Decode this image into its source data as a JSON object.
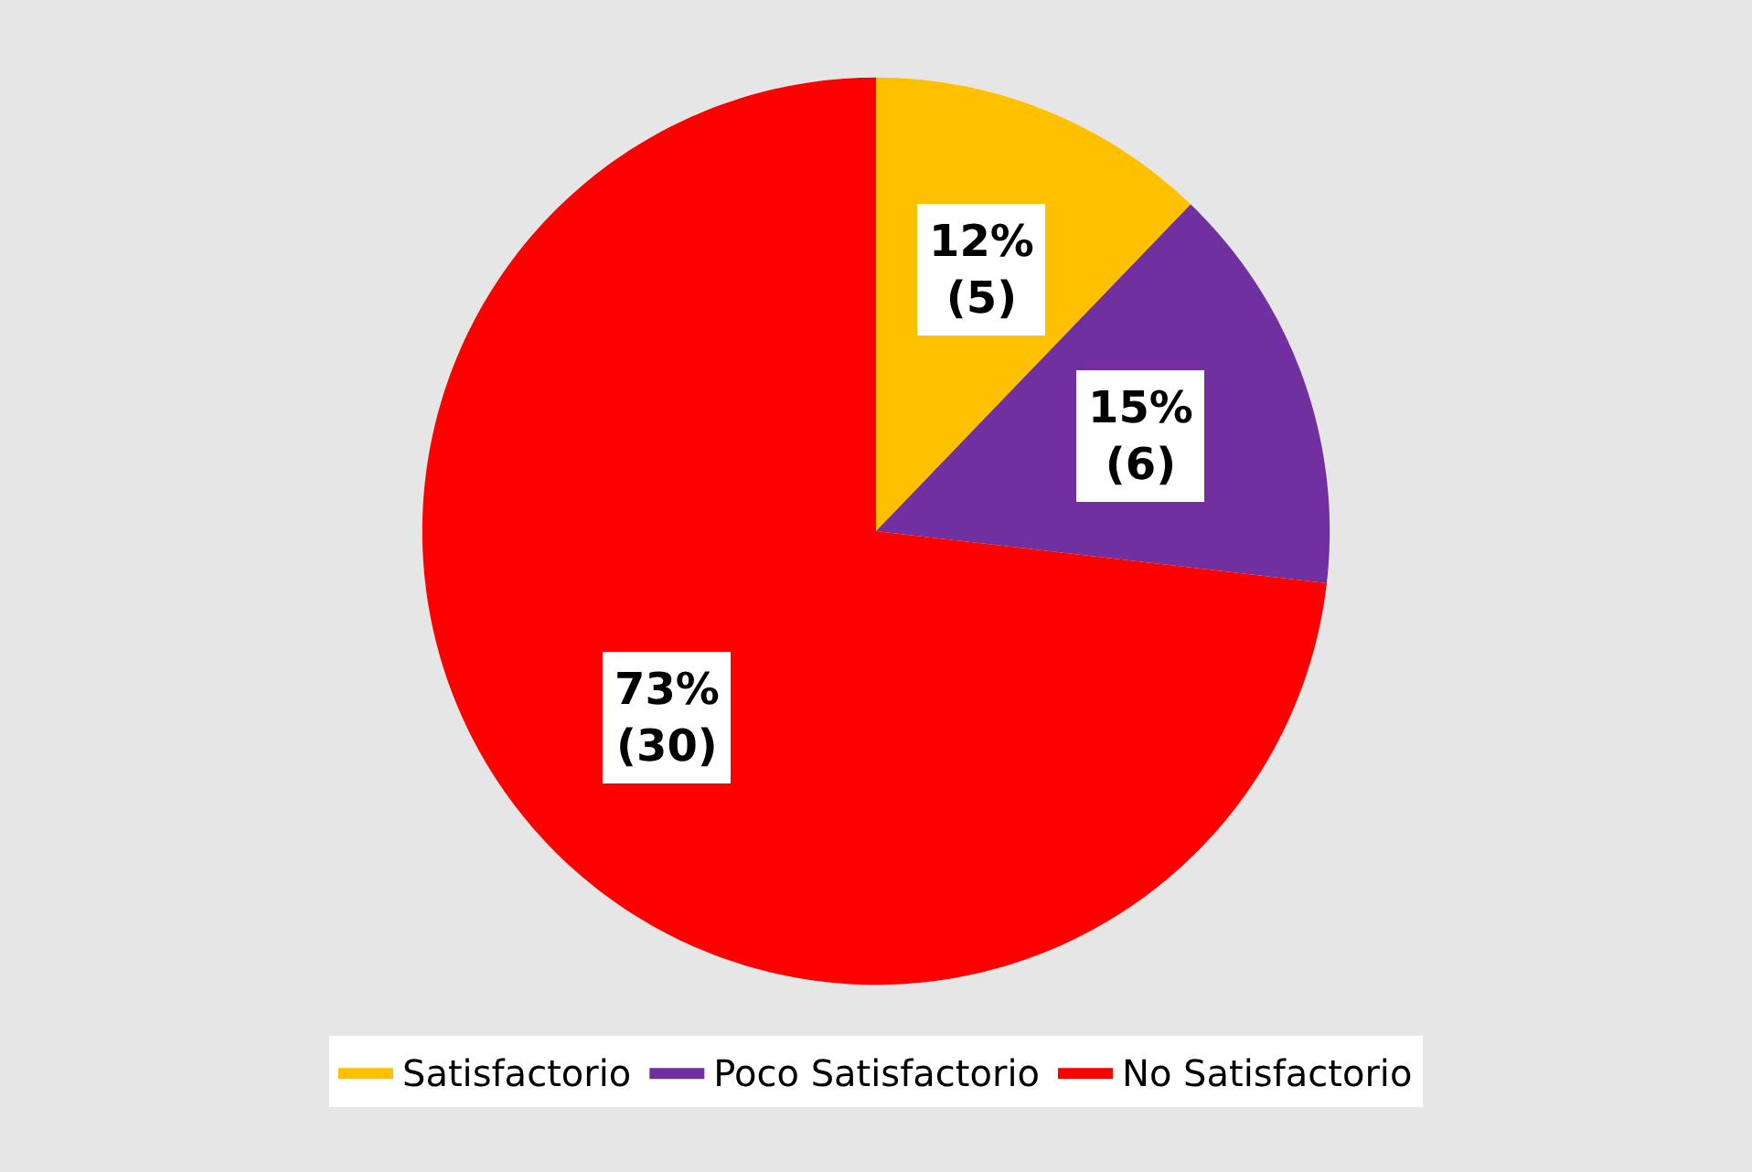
{
  "chart_data": {
    "type": "pie",
    "categories": [
      "Satisfactorio",
      "Poco Satisfactorio",
      "No Satisfactorio"
    ],
    "values": [
      5,
      6,
      30
    ],
    "value_labels": [
      "12%\n(5)",
      "15%\n(6)",
      "73%\n(30)"
    ],
    "colors": [
      "#ffc000",
      "#7030a0",
      "#ff0000"
    ],
    "legend": "bottom"
  }
}
